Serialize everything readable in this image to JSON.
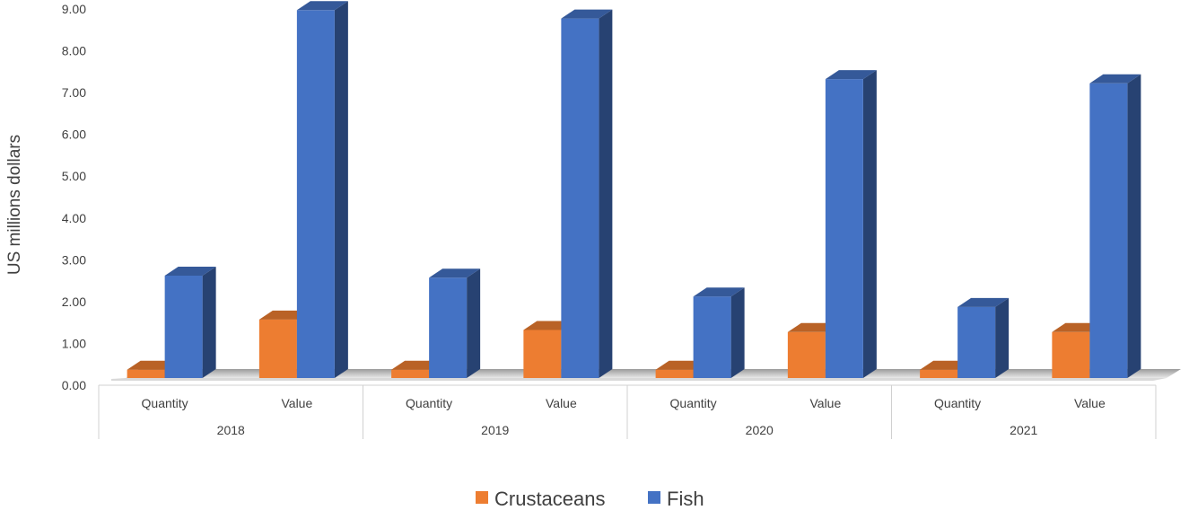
{
  "chart_data": {
    "type": "bar",
    "title": "",
    "xlabel": "",
    "ylabel": "US millions dollars",
    "ylim": [
      0,
      9
    ],
    "ytick_values": [
      0,
      1,
      2,
      3,
      4,
      5,
      6,
      7,
      8,
      9
    ],
    "ytick_labels": [
      "0.00",
      "1.00",
      "2.00",
      "3.00",
      "4.00",
      "5.00",
      "6.00",
      "7.00",
      "8.00",
      "9.00"
    ],
    "groups": [
      "2018",
      "2019",
      "2020",
      "2021"
    ],
    "categories": [
      "Quantity",
      "Value",
      "Quantity",
      "Value",
      "Quantity",
      "Value",
      "Quantity",
      "Value"
    ],
    "series": [
      {
        "name": "Crustaceans",
        "color": "#ed7d31",
        "values": [
          0.2,
          1.4,
          0.2,
          1.15,
          0.2,
          1.1,
          0.2,
          1.1
        ]
      },
      {
        "name": "Fish",
        "color": "#4472c4",
        "values": [
          2.45,
          8.8,
          2.4,
          8.6,
          1.95,
          7.15,
          1.7,
          7.05
        ]
      }
    ],
    "grid": false,
    "legend_position": "bottom",
    "style": "3d-column"
  }
}
